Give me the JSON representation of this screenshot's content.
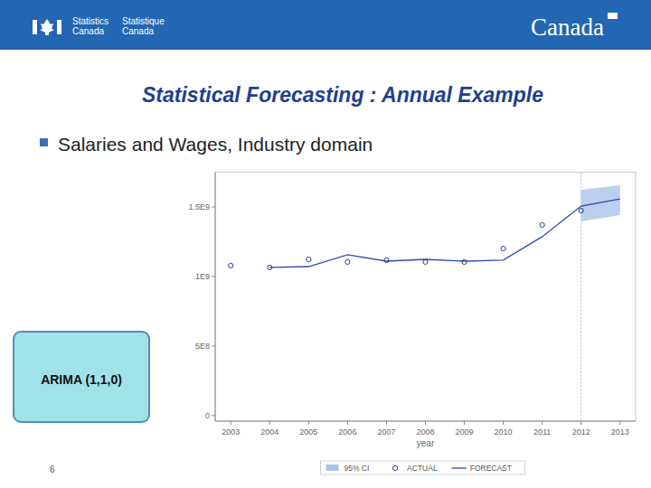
{
  "slide": {
    "header": {
      "agency_en": [
        "Statistics",
        "Canada"
      ],
      "agency_fr": [
        "Statistique",
        "Canada"
      ],
      "wordmark": "Canada"
    },
    "title": "Statistical Forecasting : Annual Example",
    "bullet": "Salaries and Wages, Industry domain",
    "model_box": "ARIMA (1,1,0)",
    "page_number": "6"
  },
  "chart_data": {
    "type": "line",
    "x_label": "year",
    "x": [
      2003,
      2004,
      2005,
      2006,
      2007,
      2008,
      2009,
      2010,
      2011,
      2012,
      2013
    ],
    "xlim": [
      2002.6,
      2013.4
    ],
    "xticks": [
      2003,
      2004,
      2005,
      2006,
      2007,
      2008,
      2009,
      2010,
      2011,
      2012,
      2013
    ],
    "ylim": [
      -40000000,
      1750000000
    ],
    "yticks": [
      0,
      {
        "value": 500000000,
        "label": "5E8"
      },
      {
        "value": 1000000000,
        "label": "1E9"
      },
      {
        "value": 1500000000,
        "label": "1.5E9"
      }
    ],
    "grid": false,
    "legend": "bottom",
    "vline": 2012,
    "series": [
      {
        "name": "ACTUAL",
        "type": "scatter",
        "marker": "circle",
        "color": "#2b3a8f",
        "values": [
          1078000000,
          1065000000,
          1123000000,
          1104000000,
          1117000000,
          1104000000,
          1104000000,
          1201000000,
          1370000000,
          1474000000,
          null
        ]
      },
      {
        "name": "FORECAST",
        "type": "line",
        "line_style": "solid",
        "color": "#2f4bb0",
        "values": [
          null,
          1065000000,
          1071000000,
          1156000000,
          1110000000,
          1123000000,
          1110000000,
          1117000000,
          1286000000,
          1506000000,
          1558000000
        ]
      },
      {
        "name": "95% CI",
        "type": "band",
        "color": "#a9c4e8",
        "lower": [
          null,
          null,
          null,
          null,
          null,
          null,
          null,
          null,
          null,
          1396000000,
          1442000000
        ],
        "upper": [
          null,
          null,
          null,
          null,
          null,
          null,
          null,
          null,
          null,
          1623000000,
          1656000000
        ]
      }
    ]
  }
}
